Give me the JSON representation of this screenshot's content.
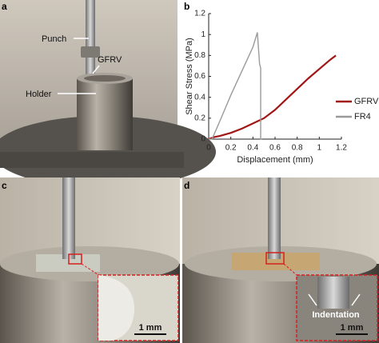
{
  "panels": {
    "a": "a",
    "b": "b",
    "c": "c",
    "d": "d"
  },
  "annotations": {
    "punch": "Punch",
    "gfrv": "GFRV",
    "holder": "Holder",
    "scale_c": "1 mm",
    "indentation": "Indentation",
    "scale_d": "1 mm"
  },
  "chart_data": {
    "type": "line",
    "xlabel": "Displacement (mm)",
    "ylabel": "Shear Stress (MPa)",
    "xlim": [
      0,
      1.2
    ],
    "ylim": [
      0,
      1.2
    ],
    "xticks": [
      0,
      0.2,
      0.4,
      0.6,
      0.8,
      1,
      1.2
    ],
    "yticks": [
      0,
      0.2,
      0.4,
      0.6,
      0.8,
      1,
      1.2
    ],
    "legend": "right",
    "series": [
      {
        "name": "GFRV",
        "color": "#a31515",
        "x": [
          0,
          0.05,
          0.1,
          0.2,
          0.3,
          0.4,
          0.5,
          0.6,
          0.7,
          0.8,
          0.9,
          1.0,
          1.1,
          1.15
        ],
        "values": [
          0,
          0.02,
          0.03,
          0.06,
          0.1,
          0.15,
          0.2,
          0.28,
          0.38,
          0.48,
          0.58,
          0.67,
          0.76,
          0.8
        ]
      },
      {
        "name": "FR4",
        "color": "#9a9a9a",
        "x": [
          0,
          0.03,
          0.1,
          0.2,
          0.3,
          0.4,
          0.44,
          0.46,
          0.47,
          0.47,
          0.48
        ],
        "values": [
          0,
          0,
          0.17,
          0.42,
          0.65,
          0.88,
          1.02,
          0.72,
          0.68,
          0,
          0
        ]
      }
    ]
  }
}
